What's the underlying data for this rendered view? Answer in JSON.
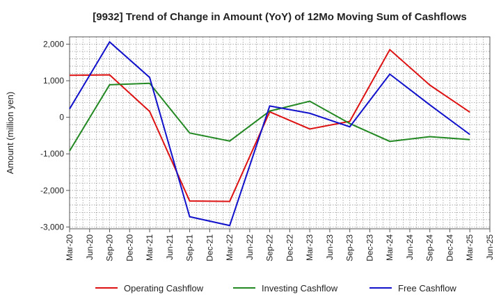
{
  "chart_data": {
    "type": "line",
    "title": "[9932]  Trend of Change in Amount (YoY) of 12Mo Moving Sum of Cashflows",
    "xlabel": "",
    "ylabel": "Amount (million yen)",
    "ylim": [
      -3050,
      2200
    ],
    "yticks": [
      2000,
      1000,
      0,
      -1000,
      -2000,
      -3000
    ],
    "ytick_labels": [
      "2,000",
      "1,000",
      "0",
      "-1,000",
      "-2,000",
      "-3,000"
    ],
    "categories": [
      "Mar-20",
      "Jun-20",
      "Sep-20",
      "Dec-20",
      "Mar-21",
      "Jun-21",
      "Sep-21",
      "Dec-21",
      "Mar-22",
      "Jun-22",
      "Sep-22",
      "Dec-22",
      "Mar-23",
      "Jun-23",
      "Sep-23",
      "Dec-23",
      "Mar-24",
      "Jun-24",
      "Sep-24",
      "Dec-24",
      "Mar-25",
      "Jun-25"
    ],
    "grid": true,
    "legend_position": "bottom",
    "series": [
      {
        "name": "Operating Cashflow",
        "color": "#dd1111",
        "points": [
          {
            "x": "Mar-20",
            "y": 1150
          },
          {
            "x": "Sep-20",
            "y": 1160
          },
          {
            "x": "Mar-21",
            "y": 160
          },
          {
            "x": "Sep-21",
            "y": -2290
          },
          {
            "x": "Mar-22",
            "y": -2300
          },
          {
            "x": "Sep-22",
            "y": 150
          },
          {
            "x": "Mar-23",
            "y": -320
          },
          {
            "x": "Sep-23",
            "y": -110
          },
          {
            "x": "Mar-24",
            "y": 1850
          },
          {
            "x": "Sep-24",
            "y": 880
          },
          {
            "x": "Mar-25",
            "y": 140
          }
        ]
      },
      {
        "name": "Investing Cashflow",
        "color": "#228822",
        "points": [
          {
            "x": "Mar-20",
            "y": -920
          },
          {
            "x": "Sep-20",
            "y": 890
          },
          {
            "x": "Mar-21",
            "y": 930
          },
          {
            "x": "Sep-21",
            "y": -430
          },
          {
            "x": "Mar-22",
            "y": -650
          },
          {
            "x": "Sep-22",
            "y": 170
          },
          {
            "x": "Mar-23",
            "y": 440
          },
          {
            "x": "Sep-23",
            "y": -170
          },
          {
            "x": "Mar-24",
            "y": -660
          },
          {
            "x": "Sep-24",
            "y": -530
          },
          {
            "x": "Mar-25",
            "y": -610
          }
        ]
      },
      {
        "name": "Free Cashflow",
        "color": "#1111cc",
        "points": [
          {
            "x": "Mar-20",
            "y": 230
          },
          {
            "x": "Sep-20",
            "y": 2060
          },
          {
            "x": "Mar-21",
            "y": 1090
          },
          {
            "x": "Sep-21",
            "y": -2720
          },
          {
            "x": "Mar-22",
            "y": -2960
          },
          {
            "x": "Sep-22",
            "y": 310
          },
          {
            "x": "Mar-23",
            "y": 110
          },
          {
            "x": "Sep-23",
            "y": -260
          },
          {
            "x": "Mar-24",
            "y": 1180
          },
          {
            "x": "Sep-24",
            "y": 340
          },
          {
            "x": "Mar-25",
            "y": -470
          }
        ]
      }
    ]
  }
}
